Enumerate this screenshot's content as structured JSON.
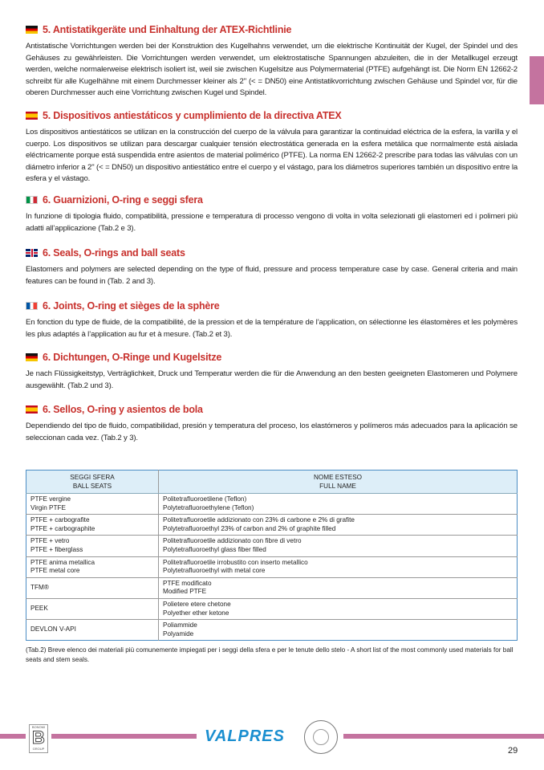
{
  "sections": [
    {
      "flag": "de",
      "title": "5. Antistatikgeräte und Einhaltung der ATEX-Richtlinie",
      "text": "Antistatische Vorrichtungen werden bei der Konstruktion des Kugelhahns verwendet, um die elektrische Kontinuität der Kugel, der Spindel und des Gehäuses zu gewährleisten. Die Vorrichtungen werden verwendet, um elektrostatische Spannungen abzuleiten, die in der Metallkugel erzeugt werden, welche normalerweise elektrisch isoliert ist, weil sie zwischen Kugelsitze aus Polymermaterial (PTFE) aufgehängt ist. Die Norm EN 12662-2 schreibt für alle Kugelhähne mit einem Durchmesser kleiner als 2\" (< = DN50) eine Antistatikvorrichtung zwischen Gehäuse und Spindel vor, für die oberen Durchmesser auch eine Vorrichtung zwischen Kugel und Spindel."
    },
    {
      "flag": "es",
      "title": "5. Dispositivos antiestáticos y cumplimiento de la directiva ATEX",
      "text": "Los dispositivos antiestáticos se utilizan en la construcción del cuerpo de la válvula para garantizar la continuidad eléctrica de la esfera, la varilla y el cuerpo. Los dispositivos se utilizan para descargar cualquier tensión electrostática generada en la esfera metálica que normalmente está aislada eléctricamente porque está suspendida entre asientos de material polimérico (PTFE). La norma EN 12662-2 prescribe para todas las válvulas con un diámetro inferior a 2\" (< = DN50) un dispositivo antiestático entre el cuerpo y el vástago, para los diámetros superiores también un dispositivo entre la esfera y el vástago."
    },
    {
      "flag": "it",
      "title": "6. Guarnizioni, O-ring e seggi sfera",
      "text": "In funzione di tipologia fluido, compatibilità, pressione e temperatura di processo vengono di volta in volta selezionati gli elastomeri ed i polimeri più adatti all’applicazione (Tab.2 e 3)."
    },
    {
      "flag": "uk",
      "title": "6. Seals, O-rings and ball seats",
      "text": "Elastomers and polymers are selected depending on the type of fluid, pressure and process temperature case by case. General criteria and main features can be found in (Tab. 2 and 3)."
    },
    {
      "flag": "fr",
      "title": "6. Joints, O-ring et sièges de la sphère",
      "text": "En fonction du type de fluide, de la compatibilité, de la pression et de la température de l’application, on sélectionne les élastomères et les polymères les plus adaptés à l’application au fur et à mesure. (Tab.2 et 3)."
    },
    {
      "flag": "de",
      "title": "6. Dichtungen, O-Ringe und Kugelsitze",
      "text": "Je nach Flüssigkeitstyp, Verträglichkeit, Druck und Temperatur werden die für die Anwendung an den besten geeigneten Elastomeren und Polymere ausgewählt. (Tab.2 und 3)."
    },
    {
      "flag": "es",
      "title": "6. Sellos, O-ring y asientos de bola",
      "text": "Dependiendo del tipo de fluido, compatibilidad, presión y temperatura del proceso, los elastómeros y polímeros más adecuados para la aplicación se seleccionan cada vez. (Tab.2 y 3)."
    }
  ],
  "table": {
    "headers": [
      [
        "SEGGI SFERA",
        "BALL SEATS"
      ],
      [
        "NOME ESTESO",
        "FULL NAME"
      ]
    ],
    "rows": [
      [
        [
          "PTFE vergine",
          "Virgin PTFE"
        ],
        [
          "Politetrafluoroetilene (Teflon)",
          "Polytetrafluoroethylene (Teflon)"
        ]
      ],
      [
        [
          "PTFE + carbografite",
          "PTFE + carbographite"
        ],
        [
          "Politetrafluoroetile addizionato con 23% di carbone e 2% di grafite",
          "Polytetrafluoroethyl  23% of carbon and 2% of graphite filled"
        ]
      ],
      [
        [
          "PTFE + vetro",
          "PTFE + fiberglass"
        ],
        [
          "Politetrafluoroetile addizionato con fibre di vetro",
          "Polytetrafluoroethyl  glass fiber filled"
        ]
      ],
      [
        [
          "PTFE anima metallica",
          "PTFE metal core"
        ],
        [
          "Politetrafluoroetile irrobustito con inserto metallico",
          "Polytetrafluoroethyl with metal core"
        ]
      ],
      [
        [
          "TFM®"
        ],
        [
          "PTFE modificato",
          "Modified PTFE"
        ]
      ],
      [
        [
          "PEEK"
        ],
        [
          "Polietere etere chetone",
          "Polyether ether ketone"
        ]
      ],
      [
        [
          "DEVLON V-API"
        ],
        [
          "Poliammide",
          "Polyamide"
        ]
      ]
    ]
  },
  "caption": "(Tab.2) Breve elenco dei materiali più comunemente impiegati per i seggi della sfera e per le tenute dello stelo - A short list of the most commonly used materials for ball seats and stem seals.",
  "footer": {
    "logo_left": "BONOMI B GROUP",
    "brand": "VALPRES",
    "page_number": "29"
  },
  "colors": {
    "heading": "#c8312d",
    "accent_pink": "#c4739f",
    "table_border": "#4c8dc4",
    "table_header_bg": "#ddeef8"
  }
}
